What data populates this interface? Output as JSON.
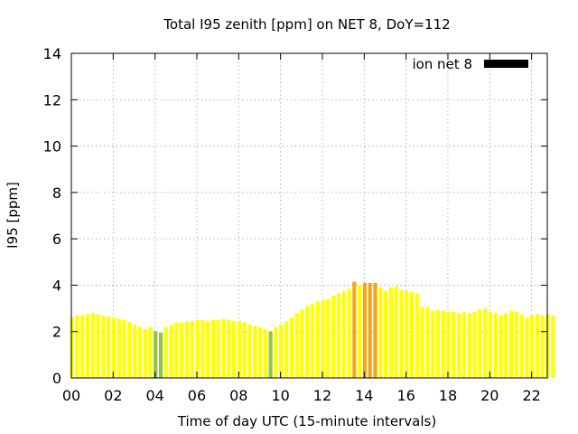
{
  "chart_data": {
    "type": "bar",
    "title": "Total I95 zenith [ppm] on NET 8, DoY=112",
    "xlabel": "Time of day UTC (15-minute intervals)",
    "ylabel": "I95 [ppm]",
    "ylim": [
      0,
      14
    ],
    "xlim": [
      0,
      22.75
    ],
    "yticks": [
      "0",
      "2",
      "4",
      "6",
      "8",
      "10",
      "12",
      "14"
    ],
    "xticks": [
      "00",
      "02",
      "04",
      "06",
      "08",
      "10",
      "12",
      "14",
      "16",
      "18",
      "20",
      "22"
    ],
    "grid": true,
    "legend": {
      "placement": "top-right",
      "entries": [
        {
          "label": "ion net 8",
          "color": "#000000"
        }
      ]
    },
    "interval_hours": 0.25,
    "colors": {
      "default": "#ffff00",
      "low": "#8fc43f",
      "high": "#f5a416"
    },
    "series": [
      {
        "values": [
          2.6,
          2.7,
          2.7,
          2.75,
          2.8,
          2.75,
          2.7,
          2.65,
          2.6,
          2.55,
          2.5,
          2.4,
          2.3,
          2.2,
          2.1,
          2.2,
          2.0,
          1.95,
          2.2,
          2.3,
          2.4,
          2.4,
          2.45,
          2.45,
          2.5,
          2.5,
          2.45,
          2.5,
          2.5,
          2.55,
          2.5,
          2.45,
          2.45,
          2.4,
          2.3,
          2.25,
          2.2,
          2.1,
          2.0,
          2.2,
          2.3,
          2.45,
          2.6,
          2.8,
          2.95,
          3.1,
          3.2,
          3.3,
          3.35,
          3.4,
          3.55,
          3.65,
          3.75,
          3.85,
          4.15,
          4.0,
          4.1,
          4.1,
          4.1,
          3.9,
          3.75,
          3.9,
          3.95,
          3.8,
          3.75,
          3.7,
          3.65,
          3.05,
          3.05,
          2.9,
          2.95,
          2.9,
          2.85,
          2.85,
          2.8,
          2.85,
          2.8,
          2.85,
          2.95,
          3.0,
          2.85,
          2.8,
          2.7,
          2.8,
          2.9,
          2.85,
          2.75,
          2.6,
          2.7,
          2.75,
          2.7,
          2.75,
          2.7
        ],
        "categories": [
          "default",
          "default",
          "default",
          "default",
          "default",
          "default",
          "default",
          "default",
          "default",
          "default",
          "default",
          "default",
          "default",
          "default",
          "default",
          "default",
          "low",
          "low",
          "default",
          "default",
          "default",
          "default",
          "default",
          "default",
          "default",
          "default",
          "default",
          "default",
          "default",
          "default",
          "default",
          "default",
          "default",
          "default",
          "default",
          "default",
          "default",
          "default",
          "low",
          "default",
          "default",
          "default",
          "default",
          "default",
          "default",
          "default",
          "default",
          "default",
          "default",
          "default",
          "default",
          "default",
          "default",
          "default",
          "high",
          "default",
          "high",
          "high",
          "high",
          "default",
          "default",
          "default",
          "default",
          "default",
          "default",
          "default",
          "default",
          "default",
          "default",
          "default",
          "default",
          "default",
          "default",
          "default",
          "default",
          "default",
          "default",
          "default",
          "default",
          "default",
          "default",
          "default",
          "default",
          "default",
          "default",
          "default",
          "default",
          "default",
          "default",
          "default",
          "default",
          "default",
          "default"
        ]
      }
    ]
  }
}
